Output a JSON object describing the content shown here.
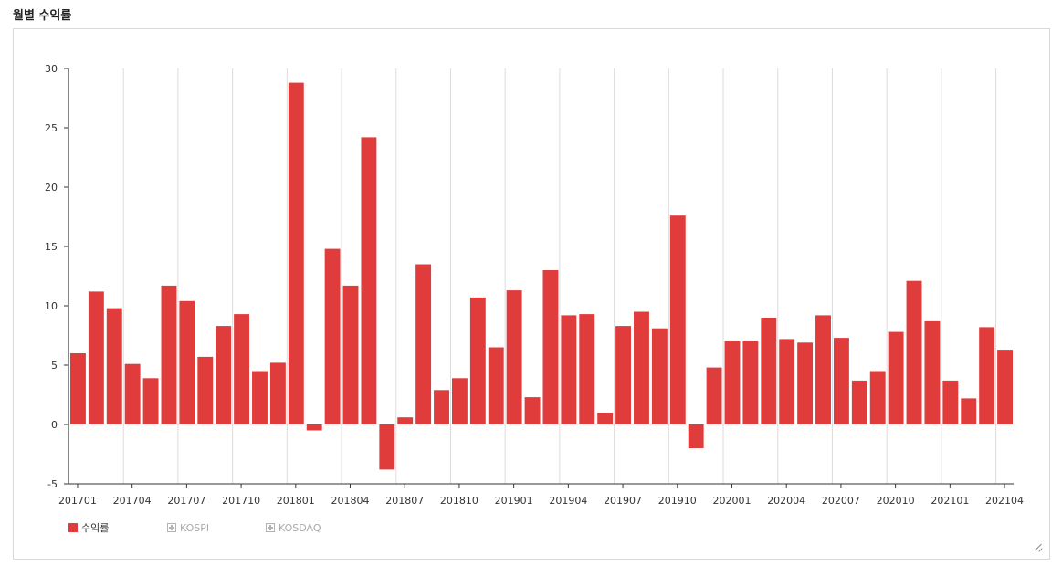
{
  "page": {
    "title": "월별 수익률"
  },
  "legend": [
    {
      "label": "수익률",
      "active": true,
      "color": "#e03c3c"
    },
    {
      "label": "KOSPI",
      "active": false
    },
    {
      "label": "KOSDAQ",
      "active": false
    }
  ],
  "chart_data": {
    "type": "bar",
    "title": "",
    "xlabel": "",
    "ylabel": "",
    "ylim": [
      -5,
      30
    ],
    "yticks": [
      -5,
      0,
      5,
      10,
      15,
      20,
      25,
      30
    ],
    "grid": "vertical",
    "legend_position": "bottom-left",
    "bar_color": "#e03c3c",
    "categories": [
      "201701",
      "201702",
      "201703",
      "201704",
      "201705",
      "201706",
      "201707",
      "201708",
      "201709",
      "201710",
      "201711",
      "201712",
      "201801",
      "201802",
      "201803",
      "201804",
      "201805",
      "201806",
      "201807",
      "201808",
      "201809",
      "201810",
      "201811",
      "201812",
      "201901",
      "201902",
      "201903",
      "201904",
      "201905",
      "201906",
      "201907",
      "201908",
      "201909",
      "201910",
      "201911",
      "201912",
      "202001",
      "202002",
      "202003",
      "202004",
      "202005",
      "202006",
      "202007",
      "202008",
      "202009",
      "202010",
      "202011",
      "202012",
      "202101",
      "202102",
      "202103",
      "202104"
    ],
    "x_tick_labels": [
      "201701",
      "201704",
      "201707",
      "201710",
      "201801",
      "201804",
      "201807",
      "201810",
      "201901",
      "201904",
      "201907",
      "201910",
      "202001",
      "202004",
      "202007",
      "202010",
      "202101",
      "202104"
    ],
    "series": [
      {
        "name": "수익률",
        "values": [
          6.0,
          11.2,
          9.8,
          5.1,
          3.9,
          11.7,
          10.4,
          5.7,
          8.3,
          9.3,
          4.5,
          5.2,
          28.8,
          -0.5,
          14.8,
          11.7,
          24.2,
          -3.8,
          0.6,
          13.5,
          2.9,
          3.9,
          10.7,
          6.5,
          11.3,
          2.3,
          13.0,
          9.2,
          9.3,
          1.0,
          8.3,
          9.5,
          8.1,
          17.6,
          -2.0,
          4.8,
          7.0,
          7.0,
          9.0,
          7.2,
          6.9,
          9.2,
          7.3,
          3.7,
          4.5,
          7.8,
          12.1,
          8.7,
          3.7,
          2.2,
          8.2,
          6.3
        ]
      }
    ]
  }
}
